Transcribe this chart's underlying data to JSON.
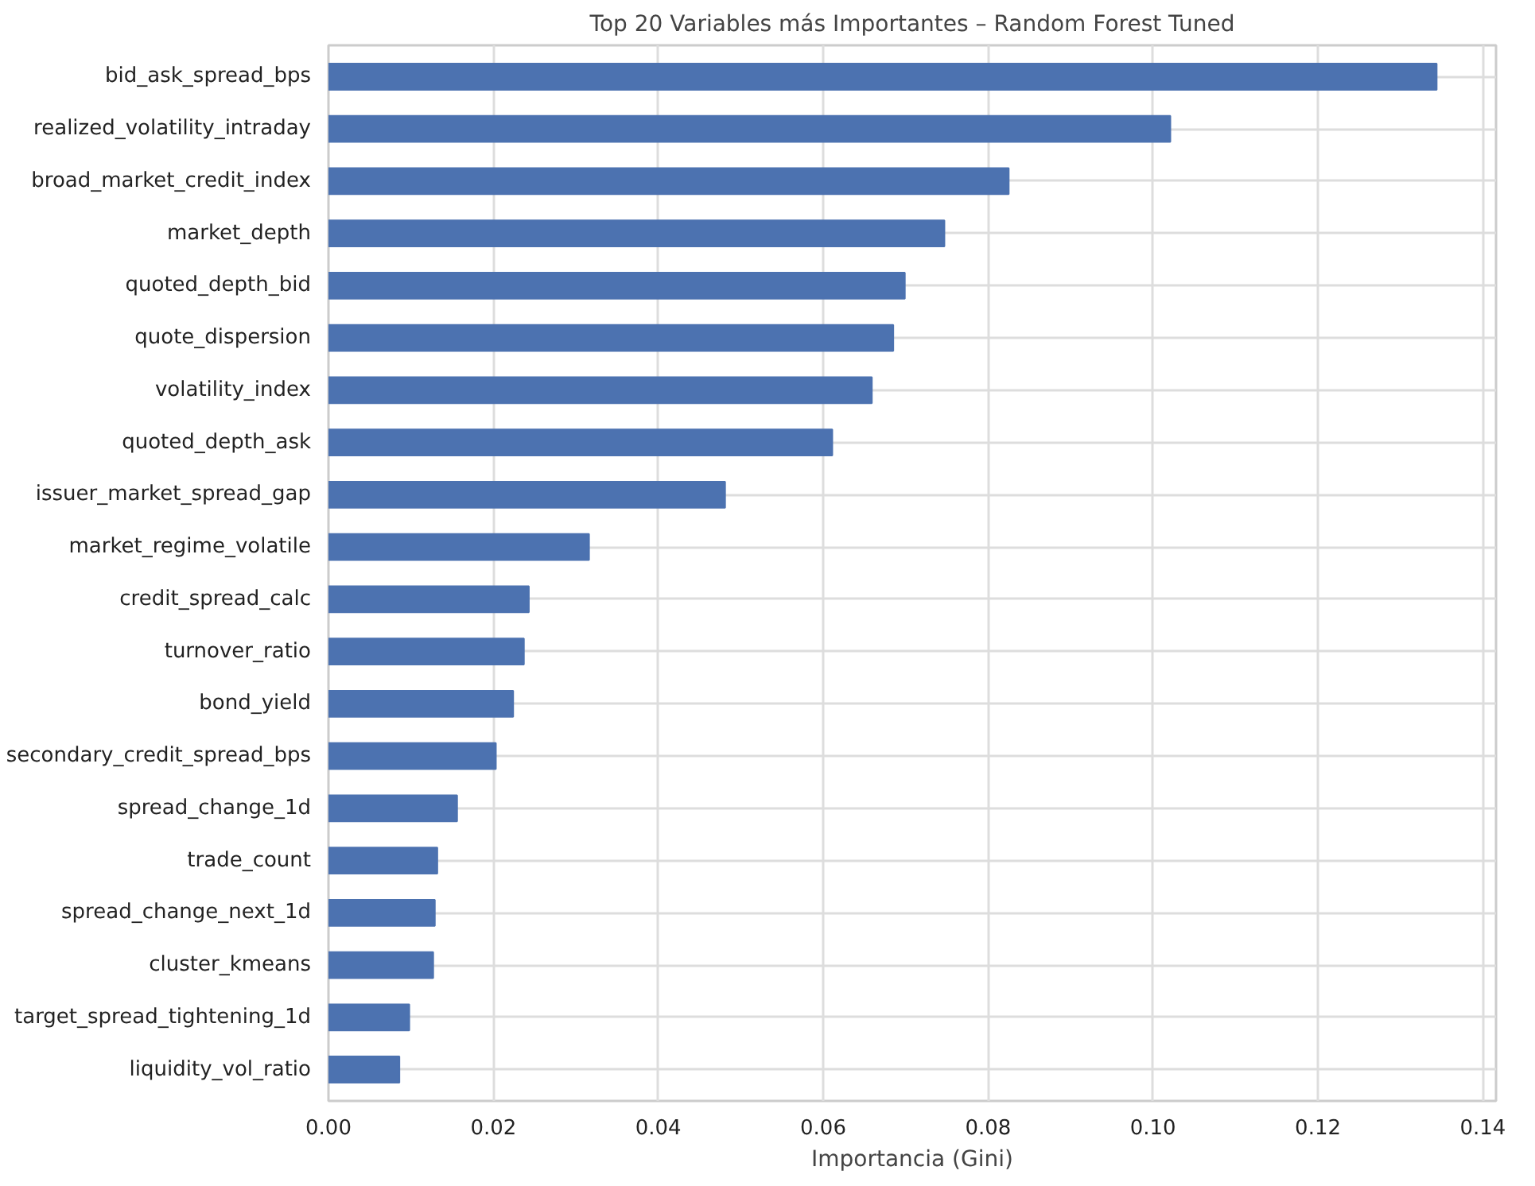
{
  "chart_data": {
    "type": "bar",
    "orientation": "horizontal",
    "title": "Top 20 Variables más Importantes – Random Forest Tuned",
    "xlabel": "Importancia (Gini)",
    "categories": [
      "bid_ask_spread_bps",
      "realized_volatility_intraday",
      "broad_market_credit_index",
      "market_depth",
      "quoted_depth_bid",
      "quote_dispersion",
      "volatility_index",
      "quoted_depth_ask",
      "issuer_market_spread_gap",
      "market_regime_volatile",
      "credit_spread_calc",
      "turnover_ratio",
      "bond_yield",
      "secondary_credit_spread_bps",
      "spread_change_1d",
      "trade_count",
      "spread_change_next_1d",
      "cluster_kmeans",
      "target_spread_tightening_1d",
      "liquidity_vol_ratio"
    ],
    "values": [
      0.1344,
      0.1021,
      0.0825,
      0.0747,
      0.0699,
      0.0685,
      0.0659,
      0.0611,
      0.0481,
      0.0316,
      0.0243,
      0.0237,
      0.0224,
      0.0203,
      0.0156,
      0.0132,
      0.0129,
      0.0127,
      0.0098,
      0.0086
    ],
    "color": "#4c72b0",
    "xlim": [
      0,
      0.1416
    ],
    "xticks": [
      {
        "value": 0,
        "label": "0.00"
      },
      {
        "value": 0.02,
        "label": "0.02"
      },
      {
        "value": 0.04,
        "label": "0.04"
      },
      {
        "value": 0.06,
        "label": "0.06"
      },
      {
        "value": 0.08,
        "label": "0.08"
      },
      {
        "value": 0.1,
        "label": "0.10"
      },
      {
        "value": 0.12,
        "label": "0.12"
      },
      {
        "value": 0.14,
        "label": "0.14"
      }
    ],
    "grid": true
  }
}
